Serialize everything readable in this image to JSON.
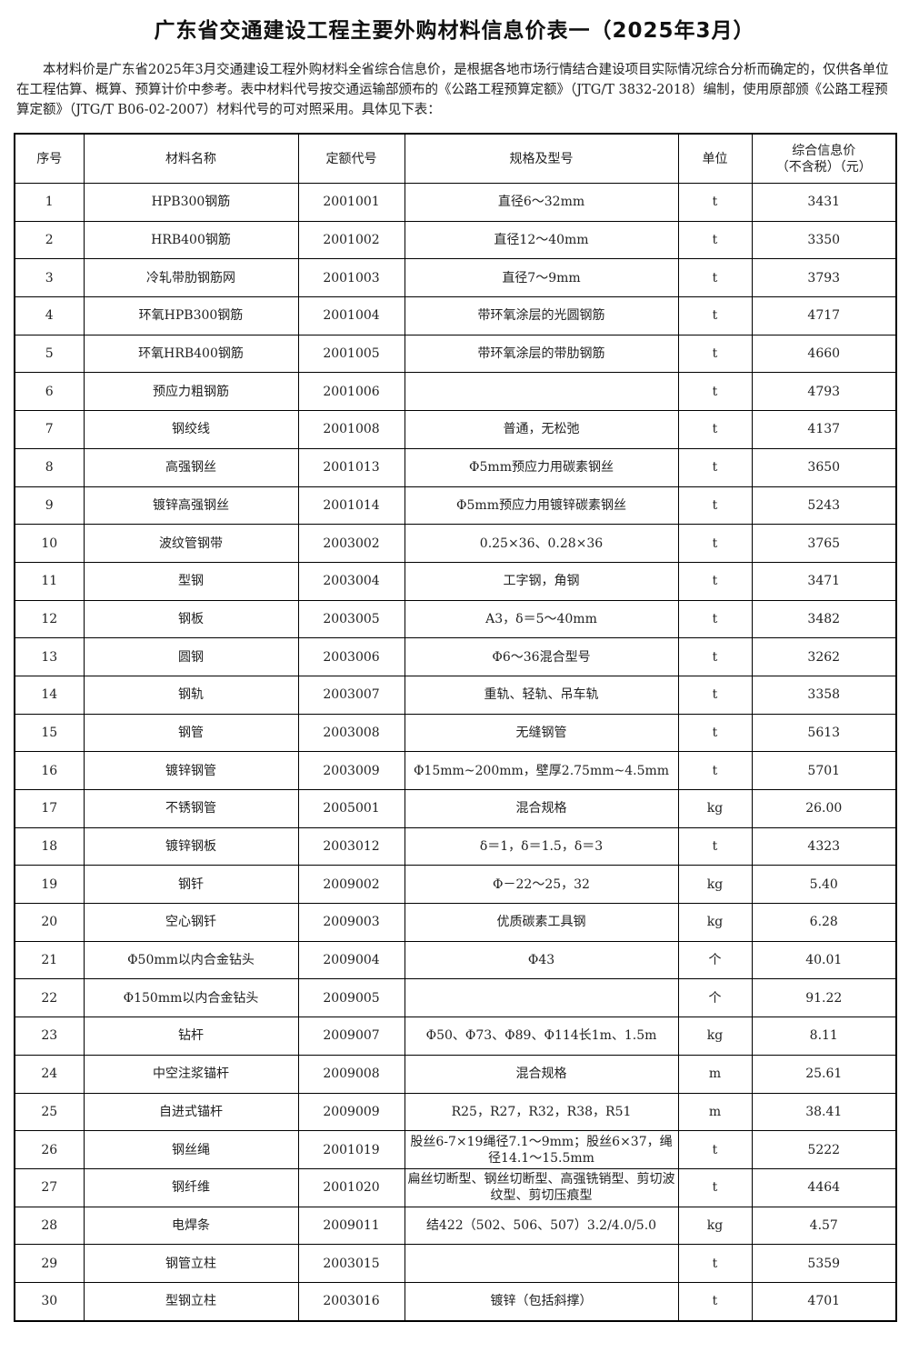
{
  "title": "广东省交通建设工程主要外购材料信息价表一（2025年3月）",
  "intro": "本材料价是广东省2025年3月交通建设工程外购材料全省综合信息价，是根据各地市场行情结合建设项目实际情况综合分析而确定的，仅供各单位在工程估算、概算、预算计价中参考。表中材料代号按交通运输部颁布的《公路工程预算定额》（JTG/T 3832-2018）编制，使用原部颁《公路工程预算定额》（JTG/T B06-02-2007）材料代号的可对照采用。具体见下表：",
  "headers": [
    "序号",
    "材料名称",
    "定额代号",
    "规格及型号",
    "单位",
    "综合信息价",
    "（不含税）（元）"
  ],
  "rows": [
    [
      "1",
      "HPB300钢筋",
      "2001001",
      "直径6～32mm",
      "t",
      "3431"
    ],
    [
      "2",
      "HRB400钢筋",
      "2001002",
      "直径12～40mm",
      "t",
      "3350"
    ],
    [
      "3",
      "冷轧带肋钢筋网",
      "2001003",
      "直径7～9mm",
      "t",
      "3793"
    ],
    [
      "4",
      "环氧HPB300钢筋",
      "2001004",
      "带环氧涂层的光圆钢筋",
      "t",
      "4717"
    ],
    [
      "5",
      "环氧HRB400钢筋",
      "2001005",
      "带环氧涂层的带肋钢筋",
      "t",
      "4660"
    ],
    [
      "6",
      "预应力粗钢筋",
      "2001006",
      "",
      "t",
      "4793"
    ],
    [
      "7",
      "钢绞线",
      "2001008",
      "普通，无松弛",
      "t",
      "4137"
    ],
    [
      "8",
      "高强钢丝",
      "2001013",
      "Φ5mm预应力用碳素钢丝",
      "t",
      "3650"
    ],
    [
      "9",
      "镀锌高强钢丝",
      "2001014",
      "Φ5mm预应力用镀锌碳素钢丝",
      "t",
      "5243"
    ],
    [
      "10",
      "波纹管钢带",
      "2003002",
      "0.25×36、0.28×36",
      "t",
      "3765"
    ],
    [
      "11",
      "型钢",
      "2003004",
      "工字钢，角钢",
      "t",
      "3471"
    ],
    [
      "12",
      "钢板",
      "2003005",
      "A3，δ＝5～40mm",
      "t",
      "3482"
    ],
    [
      "13",
      "圆钢",
      "2003006",
      "Φ6～36混合型号",
      "t",
      "3262"
    ],
    [
      "14",
      "钢轨",
      "2003007",
      "重轨、轻轨、吊车轨",
      "t",
      "3358"
    ],
    [
      "15",
      "钢管",
      "2003008",
      "无缝钢管",
      "t",
      "5613"
    ],
    [
      "16",
      "镀锌钢管",
      "2003009",
      "Φ15mm~200mm，壁厚2.75mm~4.5mm",
      "t",
      "5701"
    ],
    [
      "17",
      "不锈钢管",
      "2005001",
      "混合规格",
      "kg",
      "26.00"
    ],
    [
      "18",
      "镀锌钢板",
      "2003012",
      "δ＝1，δ＝1.5，δ＝3",
      "t",
      "4323"
    ],
    [
      "19",
      "钢钎",
      "2009002",
      "Φ－22～25，32",
      "kg",
      "5.40"
    ],
    [
      "20",
      "空心钢钎",
      "2009003",
      "优质碳素工具钢",
      "kg",
      "6.28"
    ],
    [
      "21",
      "Φ50mm以内合金钻头",
      "2009004",
      "Φ43",
      "个",
      "40.01"
    ],
    [
      "22",
      "Φ150mm以内合金钻头",
      "2009005",
      "",
      "个",
      "91.22"
    ],
    [
      "23",
      "钻杆",
      "2009007",
      "Φ50、Φ73、Φ89、Φ114长1m、1.5m",
      "kg",
      "8.11"
    ],
    [
      "24",
      "中空注浆锚杆",
      "2009008",
      "混合规格",
      "m",
      "25.61"
    ],
    [
      "25",
      "自进式锚杆",
      "2009009",
      "R25，R27，R32，R38，R51",
      "m",
      "38.41"
    ],
    [
      "26",
      "钢丝绳",
      "2001019",
      "股丝6-7×19绳径7.1～9mm；股丝6×37，绳径14.1～15.5mm",
      "t",
      "5222"
    ],
    [
      "27",
      "钢纤维",
      "2001020",
      "扁丝切断型、钢丝切断型、高强铣销型、剪切波纹型、剪切压痕型",
      "t",
      "4464"
    ],
    [
      "28",
      "电焊条",
      "2009011",
      "结422（502、506、507）3.2/4.0/5.0",
      "kg",
      "4.57"
    ],
    [
      "29",
      "钢管立柱",
      "2003015",
      "",
      "t",
      "5359"
    ],
    [
      "30",
      "型钢立柱",
      "2003016",
      "镀锌（包括斜撑）",
      "t",
      "4701"
    ]
  ]
}
